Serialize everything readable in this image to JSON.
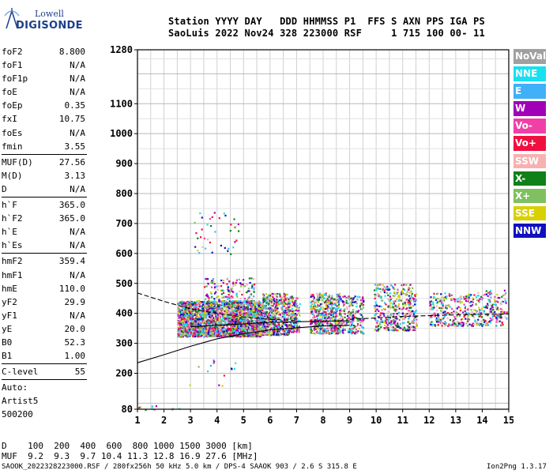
{
  "logo": {
    "line1": "Lowell",
    "line2": "DIGISONDE"
  },
  "header": {
    "row1": "Station YYYY DAY   DDD HHMMSS P1  FFS S AXN PPS IGA PS",
    "row2": "SaoLuis 2022 Nov24 328 223000 RSF     1 715 100 00- 11"
  },
  "sidebar": {
    "groups": [
      [
        {
          "label": "foF2",
          "value": "8.800"
        },
        {
          "label": "foF1",
          "value": "N/A"
        },
        {
          "label": "foF1p",
          "value": "N/A"
        },
        {
          "label": "foE",
          "value": "N/A"
        },
        {
          "label": "foEp",
          "value": "0.35"
        },
        {
          "label": "fxI",
          "value": "10.75"
        },
        {
          "label": "foEs",
          "value": "N/A"
        },
        {
          "label": "fmin",
          "value": "3.55"
        }
      ],
      [
        {
          "label": "MUF(D)",
          "value": "27.56"
        },
        {
          "label": "M(D)",
          "value": "3.13"
        },
        {
          "label": "D",
          "value": "N/A"
        }
      ],
      [
        {
          "label": "h`F",
          "value": "365.0"
        },
        {
          "label": "h`F2",
          "value": "365.0"
        },
        {
          "label": "h`E",
          "value": "N/A"
        },
        {
          "label": "h`Es",
          "value": "N/A"
        }
      ],
      [
        {
          "label": "hmF2",
          "value": "359.4"
        },
        {
          "label": "hmF1",
          "value": "N/A"
        },
        {
          "label": "hmE",
          "value": "110.0"
        },
        {
          "label": "yF2",
          "value": "29.9"
        },
        {
          "label": "yF1",
          "value": "N/A"
        },
        {
          "label": "yE",
          "value": "20.0"
        },
        {
          "label": "B0",
          "value": "52.3"
        },
        {
          "label": "B1",
          "value": "1.00"
        }
      ],
      [
        {
          "label": "C-level",
          "value": "55"
        }
      ]
    ],
    "auto_lines": [
      "Auto:",
      "Artist5",
      "500200"
    ]
  },
  "legend": [
    {
      "label": "NoVal",
      "color": "#a0a0a0"
    },
    {
      "label": "NNE",
      "color": "#18e0f0"
    },
    {
      "label": "E",
      "color": "#40b0f8"
    },
    {
      "label": "W",
      "color": "#a000b8"
    },
    {
      "label": "Vo-",
      "color": "#f040a8"
    },
    {
      "label": "Vo+",
      "color": "#f01040"
    },
    {
      "label": "SSW",
      "color": "#f8b0b0"
    },
    {
      "label": "X-",
      "color": "#108018"
    },
    {
      "label": "X+",
      "color": "#80c060"
    },
    {
      "label": "SSE",
      "color": "#d8d000"
    },
    {
      "label": "NNW",
      "color": "#1010c0"
    }
  ],
  "footer": {
    "line1": "D    100  200  400  600  800 1000 1500 3000 [km]",
    "line2": "MUF  9.2  9.3  9.7 10.4 11.3 12.8 16.9 27.6 [MHz]",
    "line3": "SAOOK_2022328223000.RSF / 280fx256h 50 kHz 5.0 km / DPS-4 SAAOK 903 / 2.6 S 315.8 E",
    "version": "Ion2Png 1.3.17"
  },
  "chart_data": {
    "type": "scatter",
    "x_ticks": [
      1,
      2,
      3,
      4,
      5,
      6,
      7,
      8,
      9,
      10,
      11,
      12,
      13,
      14,
      15
    ],
    "y_ticks": [
      80,
      200,
      300,
      400,
      500,
      600,
      700,
      800,
      900,
      1000,
      1100,
      1280
    ],
    "xlim": [
      1,
      15
    ],
    "ylim": [
      80,
      1280
    ],
    "grid": true,
    "clusters": [
      {
        "x": [
          2.5,
          5.7
        ],
        "y": [
          325,
          445
        ],
        "count": 2600
      },
      {
        "x": [
          3.5,
          5.4
        ],
        "y": [
          430,
          520
        ],
        "count": 160
      },
      {
        "x": [
          5.7,
          6.7
        ],
        "y": [
          330,
          470
        ],
        "count": 520
      },
      {
        "x": [
          6.7,
          7.1
        ],
        "y": [
          340,
          460
        ],
        "count": 130
      },
      {
        "x": [
          7.5,
          8.6
        ],
        "y": [
          335,
          470
        ],
        "count": 460
      },
      {
        "x": [
          8.6,
          9.5
        ],
        "y": [
          335,
          460
        ],
        "count": 240
      },
      {
        "x": [
          9.9,
          11.5
        ],
        "y": [
          345,
          500
        ],
        "count": 420
      },
      {
        "x": [
          12.0,
          13.8
        ],
        "y": [
          360,
          470
        ],
        "count": 280
      },
      {
        "x": [
          13.8,
          14.9
        ],
        "y": [
          360,
          480
        ],
        "count": 170
      },
      {
        "x": [
          3.0,
          4.8
        ],
        "y": [
          600,
          760
        ],
        "count": 40
      },
      {
        "x": [
          2.8,
          4.8
        ],
        "y": [
          160,
          280
        ],
        "count": 14
      },
      {
        "x": [
          1.0,
          2.8
        ],
        "y": [
          80,
          95
        ],
        "count": 12
      }
    ],
    "curves": [
      {
        "style": "solid",
        "x": [
          1,
          2,
          3,
          4,
          5,
          6,
          7,
          8,
          9
        ],
        "y": [
          235,
          262,
          290,
          315,
          332,
          345,
          352,
          358,
          360
        ]
      },
      {
        "style": "solid",
        "x": [
          3,
          4,
          5,
          6,
          7,
          8,
          9
        ],
        "y": [
          355,
          360,
          365,
          370,
          372,
          374,
          375
        ]
      },
      {
        "style": "dashed",
        "x": [
          1,
          2,
          3,
          4,
          5,
          6,
          7
        ],
        "y": [
          468,
          440,
          415,
          400,
          388,
          380,
          376
        ]
      },
      {
        "style": "dashed",
        "x": [
          9,
          11,
          13,
          15
        ],
        "y": [
          380,
          390,
          395,
          398
        ]
      }
    ]
  }
}
